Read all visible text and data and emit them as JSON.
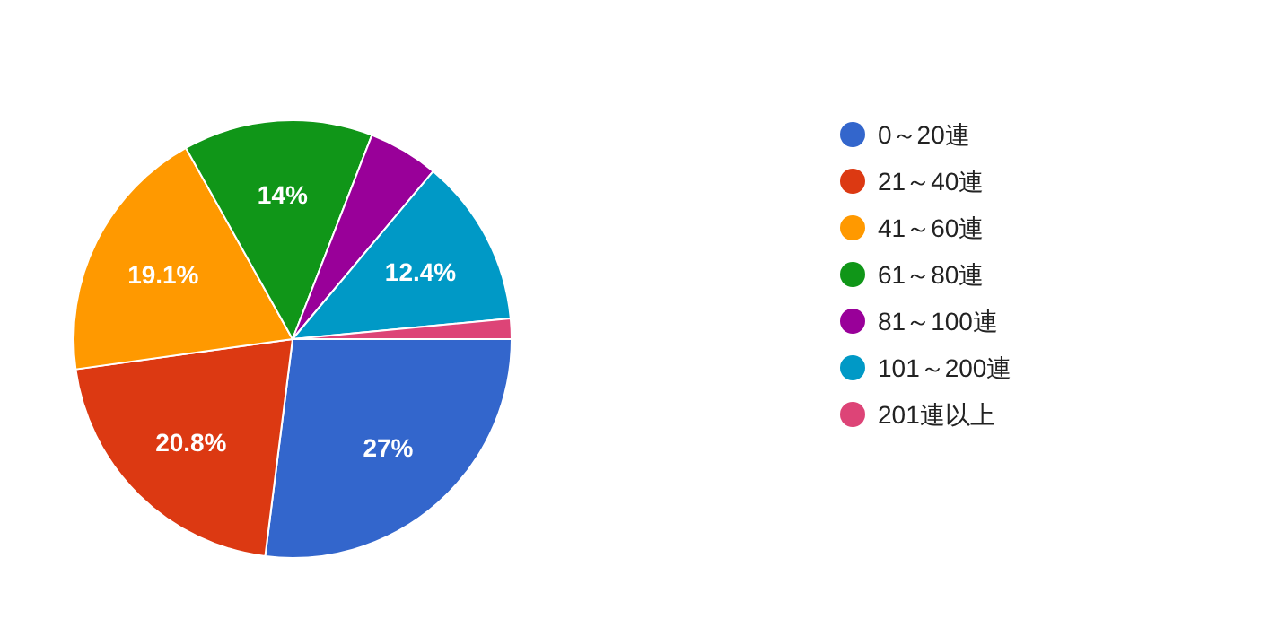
{
  "chart_data": {
    "type": "pie",
    "categories": [
      "0～20連",
      "21～40連",
      "41～60連",
      "61～80連",
      "81～100連",
      "101～200連",
      "201連以上"
    ],
    "values": [
      27,
      20.8,
      19.1,
      14,
      5.2,
      12.4,
      1.5
    ],
    "value_labels": [
      "27%",
      "20.8%",
      "19.1%",
      "14%",
      null,
      "12.4%",
      null
    ],
    "colors": [
      "#3366cc",
      "#dc3912",
      "#ff9900",
      "#109618",
      "#990099",
      "#0099c6",
      "#dd4477"
    ],
    "legend": "right"
  }
}
